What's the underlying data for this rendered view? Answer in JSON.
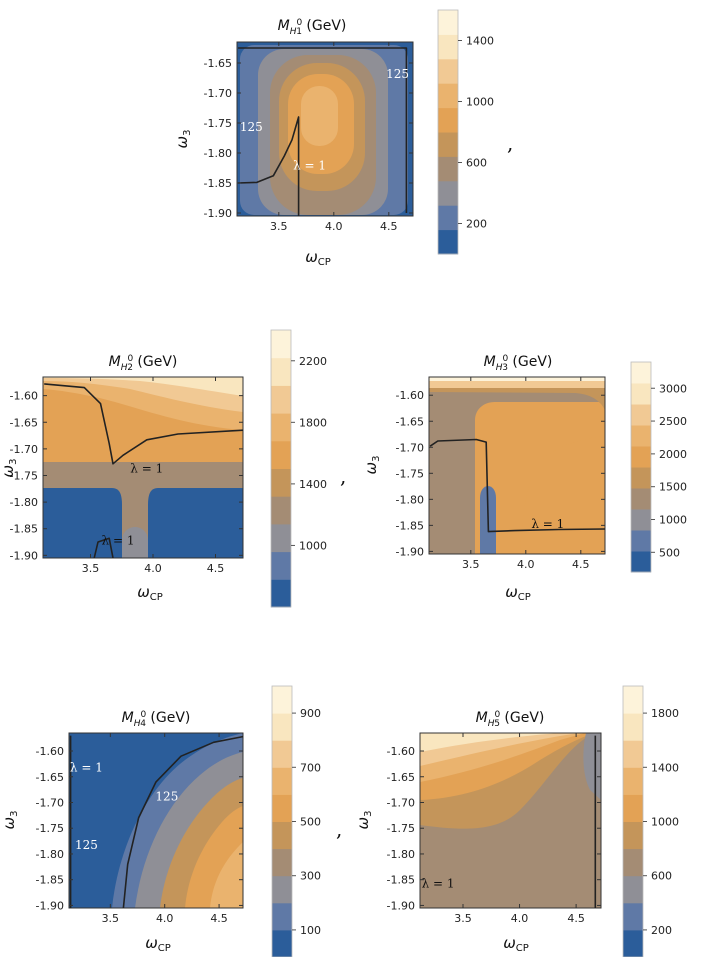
{
  "colors": {
    "scale": [
      "#2b5d9a",
      "#5f79a6",
      "#8f8f96",
      "#a48c74",
      "#c4955a",
      "#e3a255",
      "#eab36e",
      "#f1c994",
      "#f9e6bf",
      "#fdf3da"
    ],
    "contour_line": "#222222",
    "frame": "#333333"
  },
  "separators": [
    ",",
    ",",
    ","
  ],
  "chart_data": [
    {
      "type": "contour",
      "title": {
        "prefix": "M",
        "sub": "H",
        "subsup": "0",
        "subsub": "1",
        "suffix": " (GeV)"
      },
      "xlabel": {
        "main": "ω",
        "sub": "CP"
      },
      "ylabel": {
        "main": "ω",
        "sub": "3"
      },
      "xlim": [
        3.12,
        4.72
      ],
      "ylim": [
        -1.905,
        -1.615
      ],
      "xticks": [
        "3.5",
        "4.0",
        "4.5"
      ],
      "xtick_values": [
        3.5,
        4.0,
        4.5
      ],
      "yticks": [
        "-1.65",
        "-1.70",
        "-1.75",
        "-1.80",
        "-1.85",
        "-1.90"
      ],
      "ytick_values": [
        -1.65,
        -1.7,
        -1.75,
        -1.8,
        -1.85,
        -1.9
      ],
      "colorbar": {
        "ticks": [
          "200",
          "600",
          "1000",
          "1400"
        ],
        "tick_values": [
          200,
          600,
          1000,
          1400
        ],
        "range": [
          0,
          1600
        ]
      },
      "annotations": [
        {
          "text": "125",
          "x": 3.25,
          "y": -1.757,
          "color": "#ffffff"
        },
        {
          "text": "125",
          "x": 4.58,
          "y": -1.668,
          "color": "#ffffff"
        },
        {
          "text": "λ = 1",
          "x": 3.78,
          "y": -1.821,
          "color": "#ffffff"
        }
      ],
      "contour_lines": [
        {
          "label": "λ = 1",
          "points": [
            [
              3.13,
              -1.85
            ],
            [
              3.3,
              -1.849
            ],
            [
              3.45,
              -1.838
            ],
            [
              3.55,
              -1.805
            ],
            [
              3.62,
              -1.778
            ],
            [
              3.68,
              -1.74
            ],
            [
              3.68,
              -1.905
            ]
          ]
        },
        {
          "label": "125",
          "points": [
            [
              3.13,
              -1.625
            ],
            [
              4.66,
              -1.625
            ],
            [
              4.66,
              -1.9
            ]
          ]
        }
      ]
    },
    {
      "type": "contour",
      "title": {
        "prefix": "M",
        "sub": "H",
        "subsup": "0",
        "subsub": "2",
        "suffix": " (GeV)"
      },
      "xlabel": {
        "main": "ω",
        "sub": "CP"
      },
      "ylabel": {
        "main": "ω",
        "sub": "3"
      },
      "xlim": [
        3.12,
        4.72
      ],
      "ylim": [
        -1.905,
        -1.565
      ],
      "xticks": [
        "3.5",
        "4.0",
        "4.5"
      ],
      "xtick_values": [
        3.5,
        4.0,
        4.5
      ],
      "yticks": [
        "-1.60",
        "-1.65",
        "-1.70",
        "-1.75",
        "-1.80",
        "-1.85",
        "-1.90"
      ],
      "ytick_values": [
        -1.6,
        -1.65,
        -1.7,
        -1.75,
        -1.8,
        -1.85,
        -1.9
      ],
      "colorbar": {
        "ticks": [
          "1000",
          "1400",
          "1800",
          "2200"
        ],
        "tick_values": [
          1000,
          1400,
          1800,
          2200
        ],
        "range": [
          600,
          2400
        ]
      },
      "annotations": [
        {
          "text": "λ = 1",
          "x": 3.95,
          "y": -1.737,
          "color": "#111111"
        },
        {
          "text": "λ = 1",
          "x": 3.72,
          "y": -1.872,
          "color": "#111111"
        }
      ],
      "contour_lines": [
        {
          "label": "λ = 1",
          "points": [
            [
              3.13,
              -1.578
            ],
            [
              3.45,
              -1.585
            ],
            [
              3.58,
              -1.615
            ],
            [
              3.65,
              -1.69
            ],
            [
              3.68,
              -1.728
            ],
            [
              3.76,
              -1.712
            ],
            [
              3.95,
              -1.683
            ],
            [
              4.2,
              -1.672
            ],
            [
              4.72,
              -1.665
            ]
          ]
        },
        {
          "label": "λ = 1",
          "points": [
            [
              3.53,
              -1.905
            ],
            [
              3.56,
              -1.875
            ],
            [
              3.65,
              -1.868
            ],
            [
              3.68,
              -1.905
            ]
          ]
        }
      ]
    },
    {
      "type": "contour",
      "title": {
        "prefix": "M",
        "sub": "H",
        "subsup": "0",
        "subsub": "3",
        "suffix": " (GeV)"
      },
      "xlabel": {
        "main": "ω",
        "sub": "CP"
      },
      "ylabel": {
        "main": "ω",
        "sub": "3"
      },
      "xlim": [
        3.12,
        4.72
      ],
      "ylim": [
        -1.905,
        -1.565
      ],
      "xticks": [
        "3.5",
        "4.0",
        "4.5"
      ],
      "xtick_values": [
        3.5,
        4.0,
        4.5
      ],
      "yticks": [
        "-1.60",
        "-1.65",
        "-1.70",
        "-1.75",
        "-1.80",
        "-1.85",
        "-1.90"
      ],
      "ytick_values": [
        -1.6,
        -1.65,
        -1.7,
        -1.75,
        -1.8,
        -1.85,
        -1.9
      ],
      "colorbar": {
        "ticks": [
          "500",
          "1000",
          "1500",
          "2000",
          "2500",
          "3000"
        ],
        "tick_values": [
          500,
          1000,
          1500,
          2000,
          2500,
          3000
        ],
        "range": [
          200,
          3400
        ]
      },
      "annotations": [
        {
          "text": "λ = 1",
          "x": 4.2,
          "y": -1.847,
          "color": "#111111"
        }
      ],
      "contour_lines": [
        {
          "label": "λ = 1",
          "points": [
            [
              3.13,
              -1.698
            ],
            [
              3.2,
              -1.688
            ],
            [
              3.55,
              -1.685
            ],
            [
              3.64,
              -1.69
            ],
            [
              3.66,
              -1.862
            ],
            [
              3.9,
              -1.86
            ],
            [
              4.3,
              -1.858
            ],
            [
              4.72,
              -1.857
            ]
          ]
        }
      ]
    },
    {
      "type": "contour",
      "title": {
        "prefix": "M",
        "sub": "H",
        "subsup": "0",
        "subsub": "4",
        "suffix": " (GeV)"
      },
      "xlabel": {
        "main": "ω",
        "sub": "CP"
      },
      "ylabel": {
        "main": "ω",
        "sub": "3"
      },
      "xlim": [
        3.12,
        4.72
      ],
      "ylim": [
        -1.905,
        -1.565
      ],
      "xticks": [
        "3.5",
        "4.0",
        "4.5"
      ],
      "xtick_values": [
        3.5,
        4.0,
        4.5
      ],
      "yticks": [
        "-1.60",
        "-1.65",
        "-1.70",
        "-1.75",
        "-1.80",
        "-1.85",
        "-1.90"
      ],
      "ytick_values": [
        -1.6,
        -1.65,
        -1.7,
        -1.75,
        -1.8,
        -1.85,
        -1.9
      ],
      "colorbar": {
        "ticks": [
          "100",
          "300",
          "500",
          "700",
          "900"
        ],
        "tick_values": [
          100,
          300,
          500,
          700,
          900
        ],
        "range": [
          0,
          1000
        ]
      },
      "annotations": [
        {
          "text": "λ = 1",
          "x": 3.28,
          "y": -1.632,
          "color": "#ffffff"
        },
        {
          "text": "125",
          "x": 3.28,
          "y": -1.783,
          "color": "#ffffff"
        },
        {
          "text": "125",
          "x": 4.02,
          "y": -1.688,
          "color": "#ffffff"
        }
      ],
      "contour_lines": [
        {
          "label": "125",
          "points": [
            [
              3.62,
              -1.905
            ],
            [
              3.66,
              -1.82
            ],
            [
              3.76,
              -1.73
            ],
            [
              3.92,
              -1.66
            ],
            [
              4.15,
              -1.61
            ],
            [
              4.45,
              -1.583
            ],
            [
              4.72,
              -1.572
            ]
          ]
        },
        {
          "label": "λ = 1",
          "points": [
            [
              3.135,
              -1.57
            ],
            [
              3.135,
              -1.905
            ]
          ]
        }
      ]
    },
    {
      "type": "contour",
      "title": {
        "prefix": "M",
        "sub": "H",
        "subsup": "0",
        "subsub": "5",
        "suffix": " (GeV)"
      },
      "xlabel": {
        "main": "ω",
        "sub": "CP"
      },
      "ylabel": {
        "main": "ω",
        "sub": "3"
      },
      "xlim": [
        3.12,
        4.72
      ],
      "ylim": [
        -1.905,
        -1.565
      ],
      "xticks": [
        "3.5",
        "4.0",
        "4.5"
      ],
      "xtick_values": [
        3.5,
        4.0,
        4.5
      ],
      "yticks": [
        "-1.60",
        "-1.65",
        "-1.70",
        "-1.75",
        "-1.80",
        "-1.85",
        "-1.90"
      ],
      "ytick_values": [
        -1.6,
        -1.65,
        -1.7,
        -1.75,
        -1.8,
        -1.85,
        -1.9
      ],
      "colorbar": {
        "ticks": [
          "200",
          "600",
          "1000",
          "1400",
          "1800"
        ],
        "tick_values": [
          200,
          600,
          1000,
          1400,
          1800
        ],
        "range": [
          0,
          2000
        ]
      },
      "annotations": [
        {
          "text": "λ = 1",
          "x": 3.28,
          "y": -1.857,
          "color": "#111111"
        }
      ],
      "contour_lines": [
        {
          "label": "λ = 1",
          "points": [
            [
              4.67,
              -1.57
            ],
            [
              4.67,
              -1.905
            ]
          ]
        }
      ]
    }
  ]
}
